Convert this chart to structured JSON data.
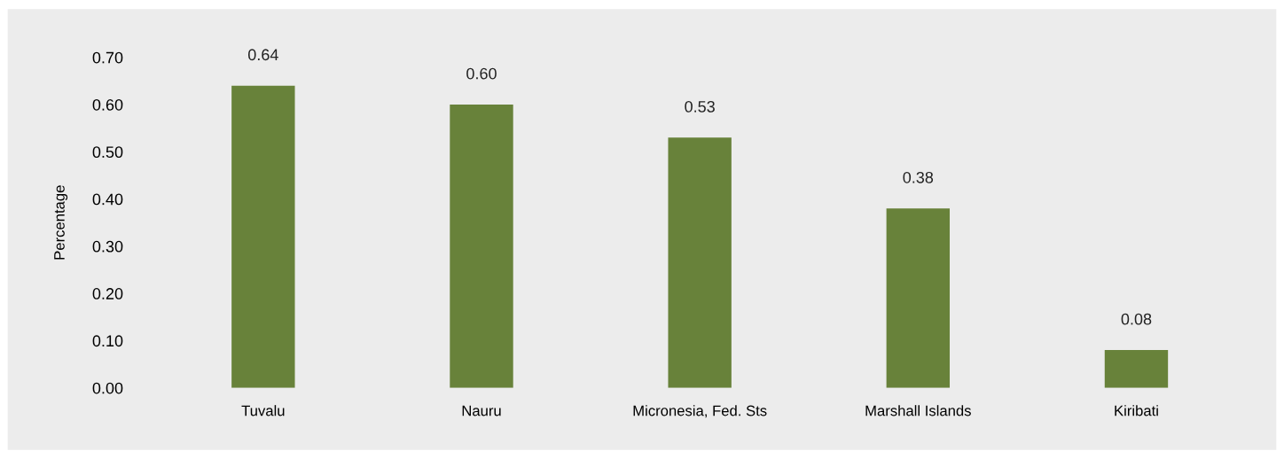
{
  "chart_data": {
    "type": "bar",
    "ylabel": "Percentage",
    "categories": [
      "Tuvalu",
      "Nauru",
      "Micronesia, Fed. Sts",
      "Marshall Islands",
      "Kiribati"
    ],
    "values": [
      0.64,
      0.6,
      0.53,
      0.38,
      0.08
    ],
    "value_labels": [
      "0.64",
      "0.60",
      "0.53",
      "0.38",
      "0.08"
    ],
    "color": "#68823a",
    "ylim": [
      0,
      0.7
    ],
    "yticks": [
      {
        "value": 0,
        "label": "0.00"
      },
      {
        "value": 0.1,
        "label": "0.10"
      },
      {
        "value": 0.2,
        "label": "0.20"
      },
      {
        "value": 0.3,
        "label": "0.30"
      },
      {
        "value": 0.4,
        "label": "0.40"
      },
      {
        "value": 0.5,
        "label": "0.50"
      },
      {
        "value": 0.6,
        "label": "0.60"
      },
      {
        "value": 0.7,
        "label": "0.70"
      }
    ],
    "grid": false,
    "legend": false
  }
}
